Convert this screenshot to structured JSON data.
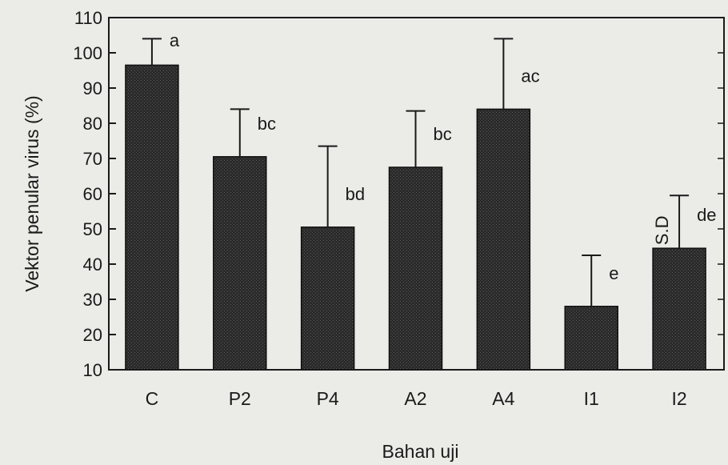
{
  "chart_data": {
    "type": "bar",
    "xlabel": "Bahan uji",
    "ylabel": "Vektor penular virus (%)",
    "ylim": [
      10,
      110
    ],
    "yticks": [
      10,
      20,
      30,
      40,
      50,
      60,
      70,
      80,
      90,
      100,
      110
    ],
    "categories": [
      "C",
      "P2",
      "P4",
      "A2",
      "A4",
      "I1",
      "I2"
    ],
    "values": [
      96.5,
      70.5,
      50.5,
      67.5,
      84,
      28,
      44.5
    ],
    "sd": [
      7.5,
      13.5,
      23,
      16,
      20,
      14.5,
      15
    ],
    "significance_letters": [
      "a",
      "bc",
      "bd",
      "bc",
      "ac",
      "e",
      "de"
    ],
    "annotation": "S.D",
    "bar_color": "#2b2b2b",
    "background_color": "#ebebe8"
  }
}
